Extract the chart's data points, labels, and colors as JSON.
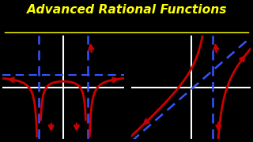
{
  "bg_color": "#000000",
  "title": "Advanced Rational Functions",
  "title_color": "#FFFF00",
  "title_fontsize": 11.2,
  "axis_color": "#FFFFFF",
  "curve_color": "#CC0000",
  "asymptote_color": "#3355FF"
}
